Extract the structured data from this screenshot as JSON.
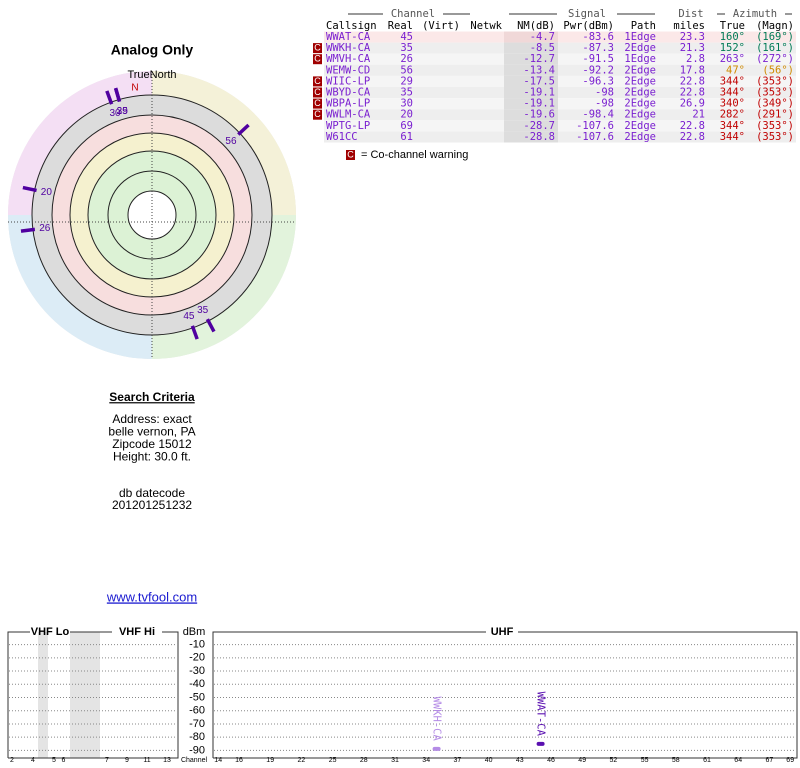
{
  "left_panel": {
    "title": "Analog Only",
    "north_label": "TrueNorth",
    "north_marker": "N",
    "stations": [
      {
        "channel": 45,
        "azimuth": 160
      },
      {
        "channel": 35,
        "azimuth": 152
      },
      {
        "channel": 26,
        "azimuth": 263
      },
      {
        "channel": 56,
        "azimuth": 47
      },
      {
        "channel": 29,
        "azimuth": 344
      },
      {
        "channel": 35,
        "azimuth": 344
      },
      {
        "channel": 30,
        "azimuth": 340
      },
      {
        "channel": 20,
        "azimuth": 282
      }
    ]
  },
  "search_criteria": {
    "title": "Search Criteria",
    "lines": [
      "Address: exact",
      "belle vernon, PA",
      "Zipcode 15012",
      "Height: 30.0 ft."
    ],
    "datecode_label": "db datecode",
    "datecode": "201201251232"
  },
  "link": "www.tvfool.com",
  "table": {
    "group_headers": {
      "channel": "Channel",
      "signal": "Signal",
      "dist": "Dist",
      "azimuth": "Azimuth"
    },
    "columns": {
      "callsign": "Callsign",
      "real": "Real",
      "virt": "(Virt)",
      "netwk": "Netwk",
      "nm": "NM(dB)",
      "pwr": "Pwr(dBm)",
      "path": "Path",
      "dist": "miles",
      "az_true": "True",
      "az_magn": "(Magn)"
    },
    "rows": [
      {
        "callsign": "WWAT-CA",
        "real": 45,
        "nm": -4.7,
        "pwr": -83.6,
        "path": "1Edge",
        "dist": 23.3,
        "az_true": {
          "value": 160,
          "label": "160°"
        },
        "az_magn": "(169°)",
        "warning": false,
        "az_color": "#007a55"
      },
      {
        "callsign": "WWKH-CA",
        "real": 35,
        "nm": -8.5,
        "pwr": -87.3,
        "path": "2Edge",
        "dist": 21.3,
        "az_true": {
          "value": 152,
          "label": "152°"
        },
        "az_magn": "(161°)",
        "warning": true,
        "az_color": "#007a55"
      },
      {
        "callsign": "WMVH-CA",
        "real": 26,
        "nm": -12.7,
        "pwr": -91.5,
        "path": "1Edge",
        "dist": 2.8,
        "az_true": {
          "value": 263,
          "label": "263°"
        },
        "az_magn": "(272°)",
        "warning": true,
        "az_color": "#7a1fd0"
      },
      {
        "callsign": "WEMW-CD",
        "real": 56,
        "nm": -13.4,
        "pwr": -92.2,
        "path": "2Edge",
        "dist": 17.8,
        "az_true": {
          "value": 47,
          "label": "47°"
        },
        "az_magn": "(56°)",
        "warning": false,
        "az_color": "#d08a00"
      },
      {
        "callsign": "WIIC-LP",
        "real": 29,
        "nm": -17.5,
        "pwr": -96.3,
        "path": "2Edge",
        "dist": 22.8,
        "az_true": {
          "value": 344,
          "label": "344°"
        },
        "az_magn": "(353°)",
        "warning": true,
        "az_color": "#c00000"
      },
      {
        "callsign": "WBYD-CA",
        "real": 35,
        "nm": -19.1,
        "pwr": -98.0,
        "path": "2Edge",
        "dist": 22.8,
        "az_true": {
          "value": 344,
          "label": "344°"
        },
        "az_magn": "(353°)",
        "warning": true,
        "az_color": "#c00000"
      },
      {
        "callsign": "WBPA-LP",
        "real": 30,
        "nm": -19.1,
        "pwr": -98.0,
        "path": "2Edge",
        "dist": 26.9,
        "az_true": {
          "value": 340,
          "label": "340°"
        },
        "az_magn": "(349°)",
        "warning": true,
        "az_color": "#c00000"
      },
      {
        "callsign": "WWLM-CA",
        "real": 20,
        "nm": -19.6,
        "pwr": -98.4,
        "path": "2Edge",
        "dist": 21.0,
        "az_true": {
          "value": 282,
          "label": "282°"
        },
        "az_magn": "(291°)",
        "warning": true,
        "az_color": "#c00000"
      },
      {
        "callsign": "WPTG-LP",
        "real": 69,
        "nm": -28.7,
        "pwr": -107.6,
        "path": "2Edge",
        "dist": 22.8,
        "az_true": {
          "value": 344,
          "label": "344°"
        },
        "az_magn": "(353°)",
        "warning": false,
        "az_color": "#c00000"
      },
      {
        "callsign": "W61CC",
        "real": 61,
        "nm": -28.8,
        "pwr": -107.6,
        "path": "2Edge",
        "dist": 22.8,
        "az_true": {
          "value": 344,
          "label": "344°"
        },
        "az_magn": "(353°)",
        "warning": false,
        "az_color": "#c00000"
      }
    ]
  },
  "warning_marker": "C",
  "warning_legend": "= Co-channel warning",
  "spectrum": {
    "bands": {
      "vhf_lo": "VHF Lo",
      "vhf_hi": "VHF Hi",
      "uhf": "UHF"
    },
    "unit": "dBm",
    "x_label": "Channel",
    "ylim": [
      -95,
      -5
    ],
    "yticks": [
      -10,
      -20,
      -30,
      -40,
      -50,
      -60,
      -70,
      -80,
      -90
    ],
    "vhf_ticks": [
      2,
      4,
      5,
      6,
      7,
      9,
      11,
      13
    ],
    "uhf_ticks": [
      14,
      16,
      19,
      22,
      25,
      28,
      31,
      34,
      37,
      40,
      43,
      46,
      49,
      52,
      55,
      58,
      61,
      64,
      67,
      69
    ],
    "stations": [
      {
        "callsign": "WWKH-CA",
        "channel": 35,
        "power": -87.3,
        "color": "#b48be6"
      },
      {
        "callsign": "WWAT-CA",
        "channel": 45,
        "power": -83.6,
        "color": "#5a10b0"
      }
    ]
  }
}
